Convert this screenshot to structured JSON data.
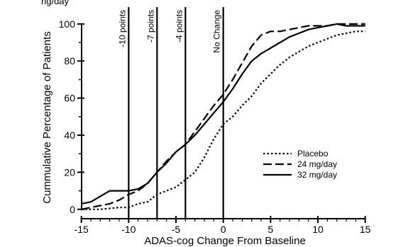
{
  "top_text": "ng/day",
  "chart_data": {
    "type": "line",
    "xlabel": "ADAS-cog Change From Baseline",
    "ylabel": "Cummulative Percentage of Patients",
    "xlim": [
      -15.5,
      16
    ],
    "ylim": [
      -2,
      103
    ],
    "xticks": [
      -15,
      -10,
      -5,
      0,
      5,
      10,
      15
    ],
    "yticks": [
      0,
      20,
      40,
      60,
      80,
      100
    ],
    "grid": false,
    "legend_position": "right",
    "vlines": [
      {
        "x": -10,
        "label": "-10 points"
      },
      {
        "x": -7,
        "label": "-7 points"
      },
      {
        "x": -4,
        "label": "-4 points"
      },
      {
        "x": 0,
        "label": "No Change"
      }
    ],
    "series": [
      {
        "name": "Placebo",
        "style": "dotted",
        "x": [
          -15,
          -13,
          -11,
          -10,
          -9,
          -8,
          -7,
          -6,
          -5,
          -4,
          -3,
          -2,
          -1,
          0,
          1,
          2,
          3,
          4,
          5,
          6,
          7,
          8,
          9,
          10,
          11,
          12,
          13,
          14,
          15
        ],
        "y": [
          0,
          0,
          1,
          1,
          3,
          4,
          8,
          10,
          12,
          16,
          20,
          28,
          38,
          46,
          50,
          56,
          61,
          68,
          73,
          78,
          82,
          85,
          88,
          90,
          92,
          94,
          95,
          96,
          96
        ]
      },
      {
        "name": "24 mg/day",
        "style": "dashed",
        "x": [
          -15,
          -14,
          -13,
          -12,
          -11,
          -10,
          -9,
          -8,
          -7,
          -6,
          -5,
          -4,
          -3,
          -2,
          -1,
          0,
          1,
          2,
          3,
          4,
          5,
          6,
          7,
          8,
          9,
          10,
          11,
          12,
          13,
          14,
          15
        ],
        "y": [
          0,
          1,
          2,
          3,
          5,
          8,
          10,
          14,
          20,
          26,
          31,
          35,
          42,
          49,
          56,
          62,
          70,
          79,
          88,
          94,
          96,
          96,
          97,
          98,
          99,
          99,
          99,
          100,
          100,
          100,
          100
        ]
      },
      {
        "name": "32 mg/day",
        "style": "solid",
        "x": [
          -15,
          -14,
          -13,
          -12,
          -11,
          -10,
          -9,
          -8,
          -7,
          -6,
          -5,
          -4,
          -3,
          -2,
          -1,
          0,
          1,
          2,
          3,
          4,
          5,
          6,
          7,
          8,
          9,
          10,
          11,
          12,
          13,
          14,
          15
        ],
        "y": [
          3,
          4,
          7,
          10,
          10,
          10,
          11,
          14,
          20,
          25,
          31,
          35,
          40,
          46,
          52,
          58,
          65,
          73,
          80,
          84,
          87,
          90,
          93,
          95,
          97,
          98,
          99,
          100,
          99,
          99,
          99
        ]
      }
    ]
  }
}
